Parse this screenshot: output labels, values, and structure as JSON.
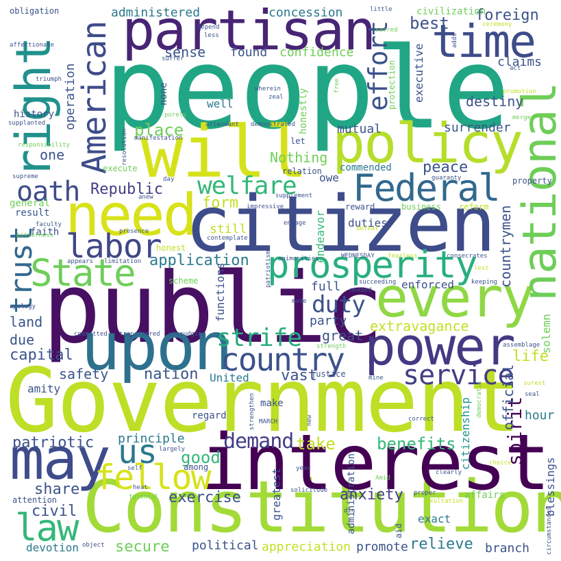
{
  "palette": {
    "dark_purple": "#440154",
    "indigo": "#3b528b",
    "blue": "#31688e",
    "teal": "#21918c",
    "green": "#35b779",
    "light_green": "#6ece58",
    "lime": "#90d743",
    "yellow_green": "#c2df23",
    "yellow": "#fde725",
    "background": "#ffffff"
  },
  "words": {
    "people": "people",
    "government": "Government",
    "constitution": "Constitution",
    "public": "public",
    "citizen": "citizen",
    "interest": "interest",
    "partisan": "partisan",
    "will": "will",
    "policy": "policy",
    "national": "national",
    "right": "right",
    "upon": "upon",
    "every": "every",
    "power": "power",
    "may": "may",
    "need": "need",
    "time": "time",
    "federal": "Federal",
    "american": "American",
    "prosperity": "prosperity",
    "country": "country",
    "labor": "labor",
    "state": "State",
    "law": "law",
    "trust": "trust",
    "fellow": "fellow",
    "service": "service",
    "us": "us",
    "welfare": "welfare",
    "oath": "oath",
    "effort": "effort",
    "strife": "strife",
    "duty": "duty",
    "demand": "demand",
    "republic": "Republic",
    "application": "application",
    "extravagance": "extravagance",
    "anxiety": "anxiety",
    "benefits": "benefits",
    "spirit": "spirit",
    "secure": "secure",
    "civil": "civil",
    "share": "share",
    "exercise": "exercise",
    "patriotic": "patriotic",
    "good": "good",
    "take": "take",
    "capital": "capital",
    "relieve": "relieve",
    "form": "form",
    "foreign": "foreign",
    "best": "best",
    "peace": "peace",
    "place": "place",
    "nation": "nation",
    "life": "life",
    "safety": "safety",
    "great": "great",
    "vast": "vast",
    "party": "party",
    "mutual": "mutual",
    "surrender": "surrender",
    "destiny": "destiny",
    "nothing": "Nothing",
    "official": "official",
    "countrymen": "countrymen",
    "executive": "executive",
    "administered": "administered",
    "concession": "concession",
    "sense": "sense",
    "found": "found",
    "confidence": "confidence",
    "claims": "claims",
    "operation": "operation",
    "one": "one",
    "land": "land",
    "due": "due",
    "still": "still",
    "full": "full",
    "enforced": "enforced",
    "functions": "functions",
    "endeavor": "endeavor",
    "duties": "duties",
    "united": "United",
    "principle": "principle",
    "hour": "hour",
    "political": "political",
    "appreciation": "appreciation",
    "promote": "promote",
    "branch": "branch",
    "devotion": "devotion",
    "amity": "amity",
    "regard": "regard",
    "greatest": "greatest",
    "administration": "administration",
    "exact": "exact",
    "blessings": "blessings",
    "citizenship": "citizenship",
    "solemn": "solemn",
    "commended": "commended",
    "honestly": "honestly",
    "civilization": "civilization",
    "history": "history",
    "well": "well",
    "general": "general",
    "result": "result",
    "faith": "faith",
    "honest": "honest",
    "let": "let",
    "relation": "relation",
    "owe": "owe",
    "reward": "reward",
    "business": "business",
    "reform": "reform",
    "property": "property",
    "scheme": "scheme",
    "execute": "execute",
    "make": "make",
    "justice": "justice",
    "among": "among",
    "affairs": "affairs",
    "attention": "attention",
    "obligation": "obligation",
    "affectionate": "affectionate",
    "triumph": "triumph",
    "supplanted": "supplanted",
    "responsibility": "responsibility",
    "supreme": "supreme",
    "faculty": "faculty",
    "bitterness": "bitterness",
    "appears": "appears",
    "limitation": "limitation",
    "apology": "apology",
    "committed": "committed",
    "transferred": "transferred",
    "ungrudging": "ungrudging",
    "surest": "surest",
    "seal": "seal",
    "self": "self",
    "heat": "heat",
    "largely": "largely",
    "faithful": "faithful",
    "solicitude": "solicitude",
    "object": "object",
    "din": "din",
    "little": "little",
    "sacred": "sacred",
    "ceremony": "ceremony",
    "adds": "adds",
    "act": "act",
    "promotion": "promotion",
    "merged": "merged",
    "guaranty": "guaranty",
    "suffer": "suffer",
    "depend": "depend",
    "less": "less",
    "wherein": "wherein",
    "zeal": "zeal",
    "free": "free",
    "protection": "protection",
    "none": "none",
    "purely": "purely",
    "attendant": "attendant",
    "demonstrated": "demonstrated",
    "manifestation": "manifestation",
    "resolution": "resolution",
    "day": "day",
    "anew": "anew",
    "supplement": "supplement",
    "impressive": "impressive",
    "presence": "presence",
    "engage": "engage",
    "contemplate": "contemplate",
    "defeat": "defeat",
    "animosities": "animosities",
    "wednesday": "WEDNESDAY",
    "fearless": "fearless",
    "consecrates": "consecrates",
    "lest": "lest",
    "patriotism": "patriotism",
    "made": "made",
    "needed": "needed",
    "succeeding": "succeeding",
    "keeping": "keeping",
    "strength": "strength",
    "assemblage": "assemblage",
    "mine": "mine",
    "democratic": "democratic",
    "strengthen": "strengthen",
    "march": "MARCH",
    "new": "new",
    "correct": "correct",
    "year": "year",
    "amid": "Amid",
    "choice": "choice",
    "clearly": "clearly",
    "proper": "proper",
    "exultation": "exultation",
    "aid": "aid",
    "circumstances": "circumstances"
  }
}
